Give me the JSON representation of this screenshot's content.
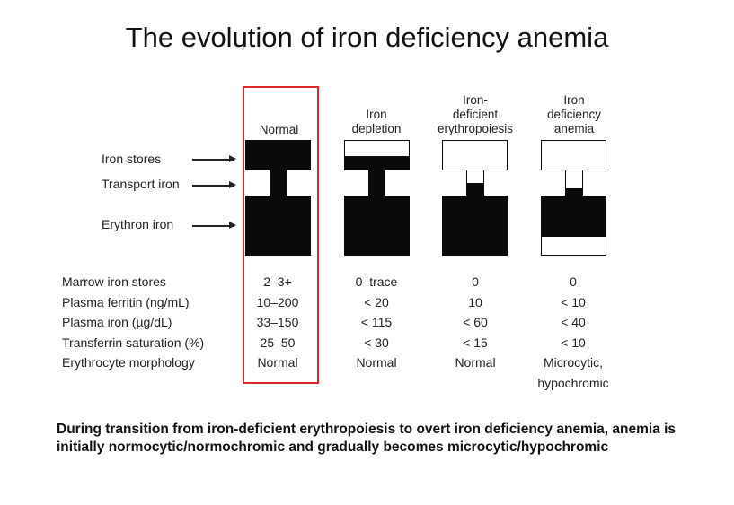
{
  "title": "The evolution of iron deficiency anemia",
  "stages": [
    {
      "header": [
        "Normal"
      ]
    },
    {
      "header": [
        "Iron",
        "depletion"
      ]
    },
    {
      "header": [
        "Iron-",
        "deficient",
        "erythropoiesis"
      ]
    },
    {
      "header": [
        "Iron",
        "deficiency",
        "anemia"
      ]
    }
  ],
  "compartments": [
    "Iron stores",
    "Transport iron",
    "Erythron iron"
  ],
  "table": {
    "rows": [
      {
        "label": "Marrow iron stores",
        "values": [
          "2–3+",
          "0–trace",
          "0",
          "0"
        ]
      },
      {
        "label": "Plasma ferritin (ng/mL)",
        "values": [
          "10–200",
          "< 20",
          "10",
          "< 10"
        ]
      },
      {
        "label": "Plasma iron (µg/dL)",
        "values": [
          "33–150",
          "< 115",
          "< 60",
          "< 40"
        ]
      },
      {
        "label": "Transferrin saturation (%)",
        "values": [
          "25–50",
          "< 30",
          "< 15",
          "< 10"
        ]
      },
      {
        "label": "Erythrocyte morphology",
        "values": [
          "Normal",
          "Normal",
          "Normal",
          "Microcytic,"
        ]
      }
    ],
    "extra_line": "hypochromic"
  },
  "caption": "During transition from iron-deficient erythropoiesis to overt iron deficiency anemia, anemia is initially normocytic/normochromic and gradually becomes microcytic/hypochromic",
  "colors": {
    "highlight": "#d9292b",
    "fill": "#0a0a0a"
  }
}
